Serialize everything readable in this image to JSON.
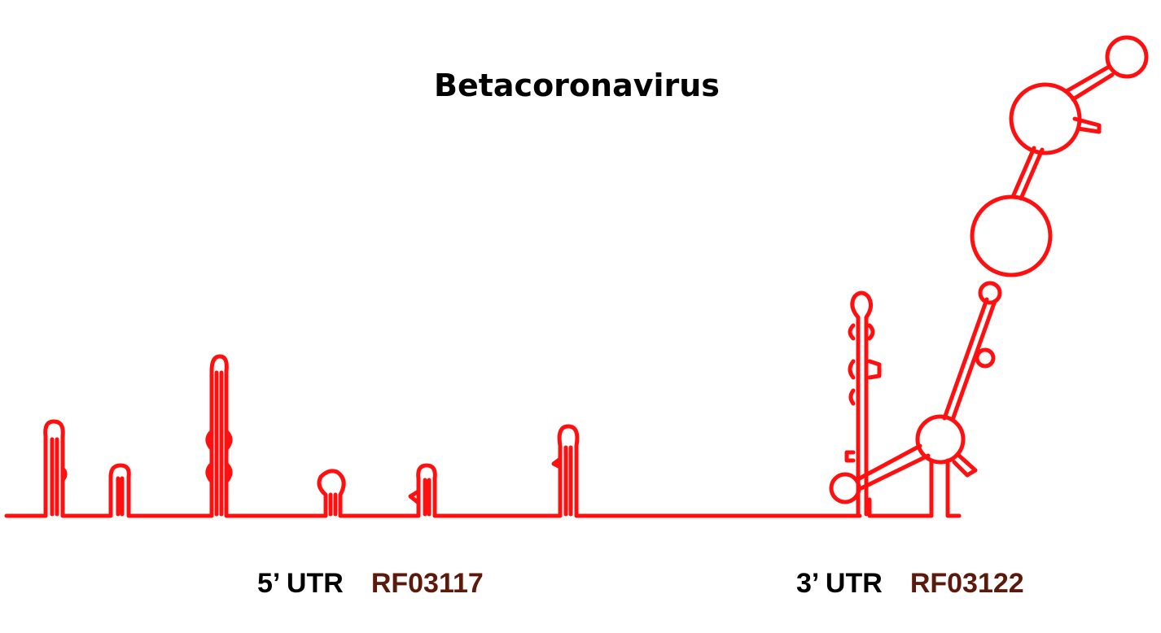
{
  "title": "Betacoronavirus",
  "colors": {
    "structure": "#ff1010",
    "accession": "#5c1a0c",
    "text": "#000000"
  },
  "regions": [
    {
      "label": "5’ UTR",
      "accession": "RF03117"
    },
    {
      "label": "3’ UTR",
      "accession": "RF03122"
    }
  ]
}
